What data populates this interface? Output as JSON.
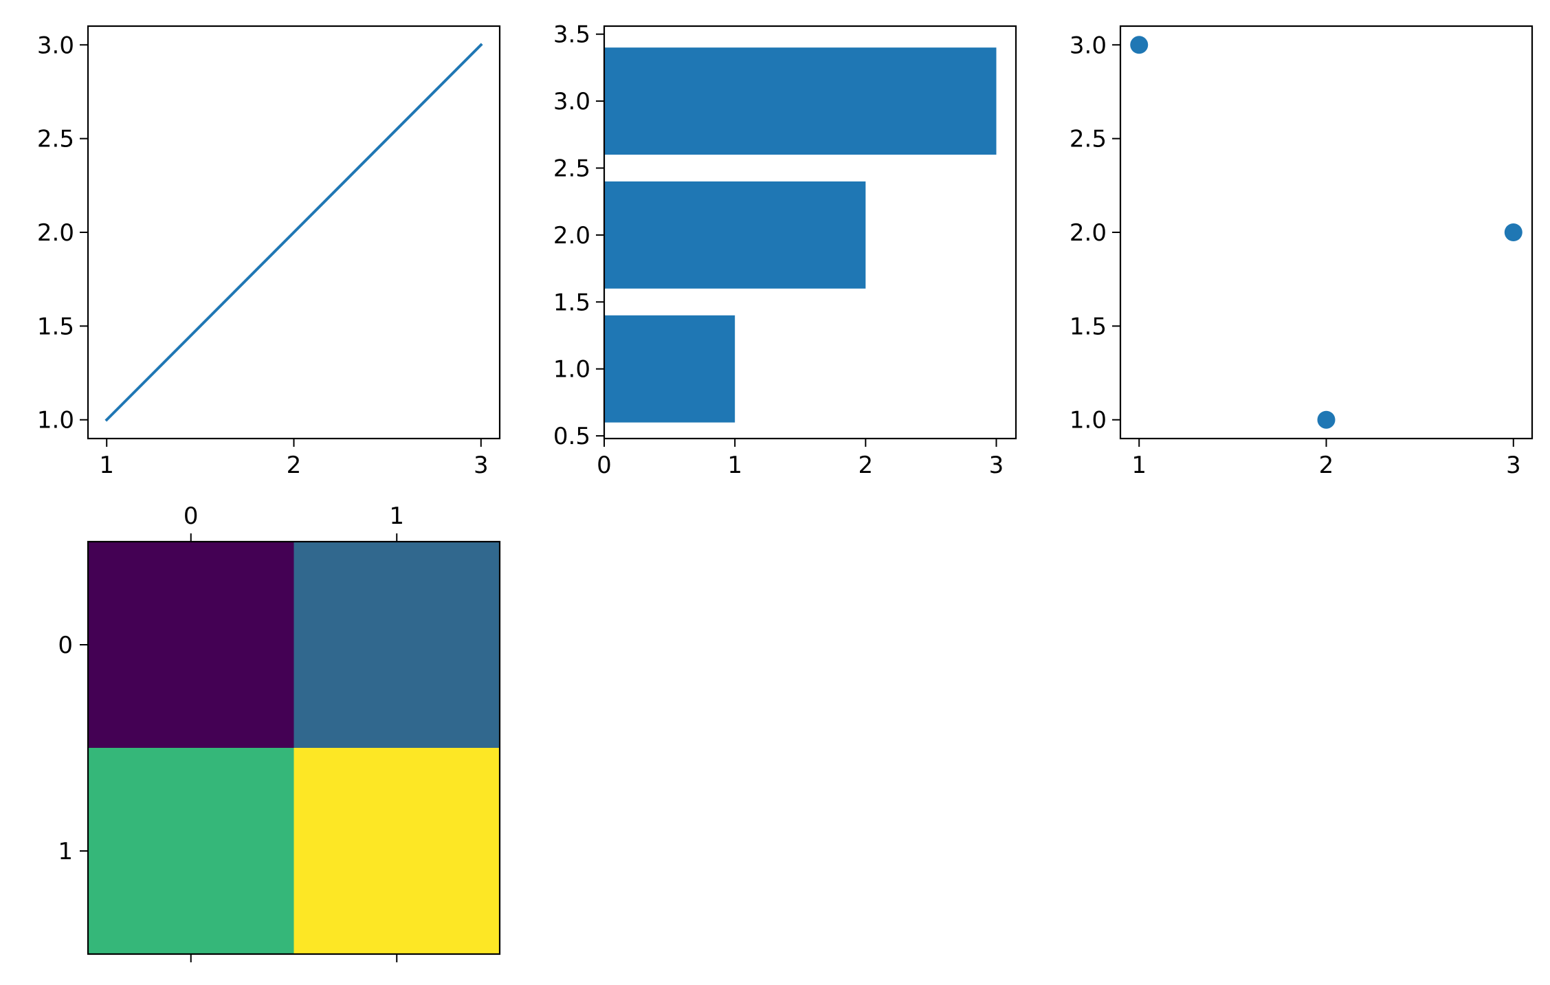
{
  "figure": {
    "background": "#ffffff",
    "series_color": "#1f77b4"
  },
  "chart_data": [
    {
      "type": "line",
      "x": [
        1,
        2,
        3
      ],
      "y": [
        1,
        2,
        3
      ],
      "xlim": [
        0.9,
        3.1
      ],
      "ylim": [
        0.9,
        3.1
      ],
      "xticks": [
        1,
        2,
        3
      ],
      "xtick_labels": [
        "1",
        "2",
        "3"
      ],
      "yticks": [
        1.0,
        1.5,
        2.0,
        2.5,
        3.0
      ],
      "ytick_labels": [
        "1.0",
        "1.5",
        "2.0",
        "2.5",
        "3.0"
      ],
      "grid": false,
      "color": "#1f77b4"
    },
    {
      "type": "bar",
      "orientation": "horizontal",
      "categories": [
        1,
        2,
        3
      ],
      "values": [
        1,
        2,
        3
      ],
      "bar_height": 0.8,
      "xlim": [
        0,
        3.15
      ],
      "ylim": [
        0.48,
        3.56
      ],
      "xticks": [
        0,
        1,
        2,
        3
      ],
      "xtick_labels": [
        "0",
        "1",
        "2",
        "3"
      ],
      "yticks": [
        0.5,
        1.0,
        1.5,
        2.0,
        2.5,
        3.0,
        3.5
      ],
      "ytick_labels": [
        "0.5",
        "1.0",
        "1.5",
        "2.0",
        "2.5",
        "3.0",
        "3.5"
      ],
      "grid": false,
      "color": "#1f77b4"
    },
    {
      "type": "scatter",
      "x": [
        1,
        2,
        3
      ],
      "y": [
        3,
        1,
        2
      ],
      "xlim": [
        0.9,
        3.1
      ],
      "ylim": [
        0.9,
        3.1
      ],
      "xticks": [
        1,
        2,
        3
      ],
      "xtick_labels": [
        "1",
        "2",
        "3"
      ],
      "yticks": [
        1.0,
        1.5,
        2.0,
        2.5,
        3.0
      ],
      "ytick_labels": [
        "1.0",
        "1.5",
        "2.0",
        "2.5",
        "3.0"
      ],
      "grid": false,
      "color": "#1f77b4"
    },
    {
      "type": "heatmap",
      "z": [
        [
          1,
          2
        ],
        [
          3,
          4
        ]
      ],
      "colors": [
        [
          "#440154",
          "#31688e"
        ],
        [
          "#35b779",
          "#fde725"
        ]
      ],
      "colormap": "viridis",
      "xticks": [
        0,
        1
      ],
      "xtick_labels": [
        "0",
        "1"
      ],
      "xtick_position": "top",
      "yticks": [
        0,
        1
      ],
      "ytick_labels": [
        "0",
        "1"
      ],
      "grid": false
    }
  ]
}
